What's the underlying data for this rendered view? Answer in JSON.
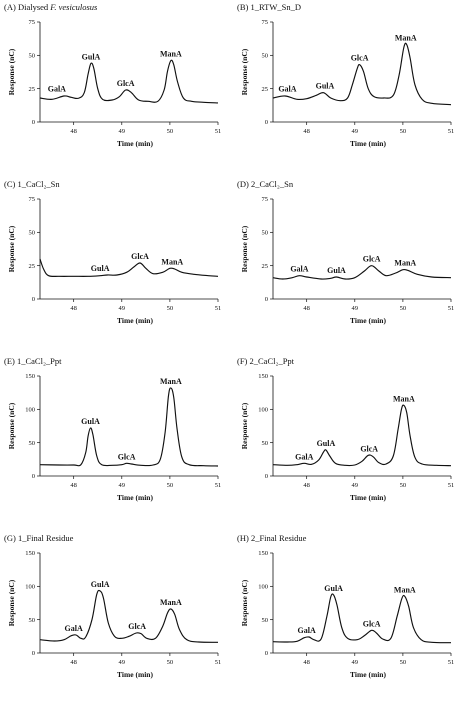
{
  "figure": {
    "x_label": "Time (min)",
    "y_label": "Response (nC)"
  },
  "chart_data": [
    {
      "type": "line",
      "panel": "A",
      "label_tag": "(A)",
      "title_plain": "Dialysed",
      "title_italic": "F. vesiculosus",
      "xlabel": "Time (min)",
      "ylabel": "Response (nC)",
      "xlim": [
        47.3,
        51
      ],
      "ylim": [
        0,
        75
      ],
      "x_ticks": [
        48,
        49,
        50,
        51
      ],
      "y_ticks": [
        0,
        25,
        50,
        75
      ],
      "baseline": [
        [
          47.3,
          18
        ],
        [
          47.55,
          17
        ],
        [
          47.8,
          19.5
        ],
        [
          47.95,
          18.5
        ],
        [
          48.1,
          17.8
        ],
        [
          48.22,
          22
        ],
        [
          48.3,
          36
        ],
        [
          48.36,
          44
        ],
        [
          48.42,
          40
        ],
        [
          48.5,
          25
        ],
        [
          48.6,
          17
        ],
        [
          48.8,
          16.5
        ],
        [
          48.95,
          19
        ],
        [
          49.08,
          24
        ],
        [
          49.2,
          22
        ],
        [
          49.35,
          16.5
        ],
        [
          49.55,
          15.5
        ],
        [
          49.75,
          15.5
        ],
        [
          49.88,
          24
        ],
        [
          49.95,
          38
        ],
        [
          50.02,
          46
        ],
        [
          50.08,
          43
        ],
        [
          50.16,
          30
        ],
        [
          50.28,
          18
        ],
        [
          50.45,
          15.5
        ],
        [
          50.7,
          14.8
        ],
        [
          51,
          14.3
        ]
      ],
      "peaks": [
        {
          "name": "GalA",
          "x": 47.65,
          "y": 20
        },
        {
          "name": "GulA",
          "x": 48.36,
          "y": 44
        },
        {
          "name": "GlcA",
          "x": 49.08,
          "y": 24
        },
        {
          "name": "ManA",
          "x": 50.02,
          "y": 46
        }
      ]
    },
    {
      "type": "line",
      "panel": "B",
      "label_tag": "(B)",
      "title_plain": "1_RTW_Sn_D",
      "title_italic": "",
      "xlabel": "Time (min)",
      "ylabel": "Response (nC)",
      "xlim": [
        47.3,
        51
      ],
      "ylim": [
        0,
        75
      ],
      "x_ticks": [
        48,
        49,
        50,
        51
      ],
      "y_ticks": [
        0,
        25,
        50,
        75
      ],
      "baseline": [
        [
          47.3,
          18
        ],
        [
          47.55,
          19.5
        ],
        [
          47.8,
          17
        ],
        [
          48.0,
          17.5
        ],
        [
          48.2,
          20
        ],
        [
          48.35,
          22
        ],
        [
          48.5,
          18
        ],
        [
          48.7,
          16
        ],
        [
          48.85,
          18
        ],
        [
          48.95,
          28
        ],
        [
          49.05,
          40
        ],
        [
          49.1,
          43
        ],
        [
          49.18,
          38
        ],
        [
          49.28,
          25
        ],
        [
          49.4,
          19
        ],
        [
          49.6,
          18
        ],
        [
          49.8,
          20
        ],
        [
          49.92,
          35
        ],
        [
          50.02,
          56
        ],
        [
          50.08,
          58
        ],
        [
          50.15,
          48
        ],
        [
          50.25,
          28
        ],
        [
          50.4,
          17
        ],
        [
          50.6,
          14
        ],
        [
          51,
          13
        ]
      ],
      "peaks": [
        {
          "name": "GalA",
          "x": 47.6,
          "y": 20
        },
        {
          "name": "GulA",
          "x": 48.38,
          "y": 22
        },
        {
          "name": "GlcA",
          "x": 49.1,
          "y": 43
        },
        {
          "name": "ManA",
          "x": 50.06,
          "y": 58
        }
      ]
    },
    {
      "type": "line",
      "panel": "C",
      "label_tag": "(C)",
      "title_plain": "1_CaCl₂_Sn",
      "title_italic": "",
      "xlabel": "Time (min)",
      "ylabel": "Response (nC)",
      "xlim": [
        47.3,
        51
      ],
      "ylim": [
        0,
        75
      ],
      "x_ticks": [
        48,
        49,
        50,
        51
      ],
      "y_ticks": [
        0,
        25,
        50,
        75
      ],
      "baseline": [
        [
          47.3,
          30
        ],
        [
          47.38,
          22
        ],
        [
          47.48,
          17.5
        ],
        [
          47.7,
          17
        ],
        [
          48.0,
          17
        ],
        [
          48.3,
          17
        ],
        [
          48.55,
          17.5
        ],
        [
          48.7,
          18
        ],
        [
          48.9,
          18
        ],
        [
          49.1,
          20
        ],
        [
          49.25,
          24
        ],
        [
          49.38,
          27
        ],
        [
          49.5,
          23
        ],
        [
          49.65,
          19
        ],
        [
          49.85,
          20
        ],
        [
          50.0,
          23
        ],
        [
          50.1,
          22.5
        ],
        [
          50.25,
          20
        ],
        [
          50.5,
          18.5
        ],
        [
          50.8,
          17.5
        ],
        [
          51,
          17
        ]
      ],
      "peaks": [
        {
          "name": "GulA",
          "x": 48.55,
          "y": 18
        },
        {
          "name": "GlcA",
          "x": 49.38,
          "y": 27
        },
        {
          "name": "ManA",
          "x": 50.05,
          "y": 23
        }
      ]
    },
    {
      "type": "line",
      "panel": "D",
      "label_tag": "(D)",
      "title_plain": "2_CaCl₂_Sn",
      "title_italic": "",
      "xlabel": "Time (min)",
      "ylabel": "Response (nC)",
      "xlim": [
        47.3,
        51
      ],
      "ylim": [
        0,
        75
      ],
      "x_ticks": [
        48,
        49,
        50,
        51
      ],
      "y_ticks": [
        0,
        25,
        50,
        75
      ],
      "baseline": [
        [
          47.3,
          16
        ],
        [
          47.5,
          15
        ],
        [
          47.7,
          16
        ],
        [
          47.85,
          17.5
        ],
        [
          48.0,
          16.5
        ],
        [
          48.3,
          15
        ],
        [
          48.5,
          15.5
        ],
        [
          48.62,
          16.5
        ],
        [
          48.8,
          15
        ],
        [
          49.0,
          16
        ],
        [
          49.2,
          21
        ],
        [
          49.35,
          25
        ],
        [
          49.5,
          21
        ],
        [
          49.65,
          17.5
        ],
        [
          49.85,
          19.5
        ],
        [
          50.0,
          22
        ],
        [
          50.1,
          21.5
        ],
        [
          50.3,
          18.5
        ],
        [
          50.6,
          16.5
        ],
        [
          51,
          16
        ]
      ],
      "peaks": [
        {
          "name": "GalA",
          "x": 47.85,
          "y": 17.5
        },
        {
          "name": "GulA",
          "x": 48.62,
          "y": 16.5
        },
        {
          "name": "GlcA",
          "x": 49.35,
          "y": 25
        },
        {
          "name": "ManA",
          "x": 50.05,
          "y": 22
        }
      ]
    },
    {
      "type": "line",
      "panel": "E",
      "label_tag": "(E)",
      "title_plain": "1_CaCl₂_Ppt",
      "title_italic": "",
      "xlabel": "Time (min)",
      "ylabel": "Response (nC)",
      "xlim": [
        47.3,
        51
      ],
      "ylim": [
        0,
        150
      ],
      "x_ticks": [
        48,
        49,
        50,
        51
      ],
      "y_ticks": [
        0,
        50,
        100,
        150
      ],
      "baseline": [
        [
          47.3,
          17
        ],
        [
          47.7,
          16.5
        ],
        [
          48.0,
          16.5
        ],
        [
          48.15,
          17
        ],
        [
          48.25,
          35
        ],
        [
          48.3,
          60
        ],
        [
          48.35,
          72
        ],
        [
          48.4,
          62
        ],
        [
          48.48,
          30
        ],
        [
          48.58,
          17
        ],
        [
          48.8,
          16
        ],
        [
          49.0,
          17
        ],
        [
          49.1,
          19
        ],
        [
          49.2,
          18
        ],
        [
          49.4,
          16
        ],
        [
          49.65,
          16.5
        ],
        [
          49.8,
          25
        ],
        [
          49.9,
          65
        ],
        [
          49.97,
          120
        ],
        [
          50.02,
          132
        ],
        [
          50.08,
          118
        ],
        [
          50.15,
          70
        ],
        [
          50.25,
          28
        ],
        [
          50.4,
          17
        ],
        [
          50.7,
          15.5
        ],
        [
          51,
          15
        ]
      ],
      "peaks": [
        {
          "name": "GulA",
          "x": 48.35,
          "y": 72
        },
        {
          "name": "GlcA",
          "x": 49.1,
          "y": 19
        },
        {
          "name": "ManA",
          "x": 50.02,
          "y": 132
        }
      ]
    },
    {
      "type": "line",
      "panel": "F",
      "label_tag": "(F)",
      "title_plain": "2_CaCl₂_Ppt",
      "title_italic": "",
      "xlabel": "Time (min)",
      "ylabel": "Response (nC)",
      "xlim": [
        47.3,
        51
      ],
      "ylim": [
        0,
        150
      ],
      "x_ticks": [
        48,
        49,
        50,
        51
      ],
      "y_ticks": [
        0,
        50,
        100,
        150
      ],
      "baseline": [
        [
          47.3,
          17
        ],
        [
          47.6,
          16
        ],
        [
          47.8,
          17
        ],
        [
          47.95,
          19
        ],
        [
          48.1,
          17.5
        ],
        [
          48.25,
          24
        ],
        [
          48.35,
          36
        ],
        [
          48.4,
          39
        ],
        [
          48.48,
          30
        ],
        [
          48.6,
          19
        ],
        [
          48.8,
          16
        ],
        [
          49.0,
          16.5
        ],
        [
          49.15,
          22
        ],
        [
          49.28,
          31
        ],
        [
          49.38,
          29
        ],
        [
          49.5,
          20
        ],
        [
          49.65,
          18
        ],
        [
          49.8,
          30
        ],
        [
          49.9,
          70
        ],
        [
          49.97,
          100
        ],
        [
          50.02,
          106
        ],
        [
          50.08,
          95
        ],
        [
          50.15,
          60
        ],
        [
          50.25,
          28
        ],
        [
          50.4,
          18
        ],
        [
          50.7,
          16
        ],
        [
          51,
          15.5
        ]
      ],
      "peaks": [
        {
          "name": "GalA",
          "x": 47.95,
          "y": 19
        },
        {
          "name": "GulA",
          "x": 48.4,
          "y": 39
        },
        {
          "name": "GlcA",
          "x": 49.3,
          "y": 31
        },
        {
          "name": "ManA",
          "x": 50.02,
          "y": 106
        }
      ]
    },
    {
      "type": "line",
      "panel": "G",
      "label_tag": "(G)",
      "title_plain": "1_Final Residue",
      "title_italic": "",
      "xlabel": "Time (min)",
      "ylabel": "Response (nC)",
      "xlim": [
        47.3,
        51
      ],
      "ylim": [
        0,
        150
      ],
      "x_ticks": [
        48,
        49,
        50,
        51
      ],
      "y_ticks": [
        0,
        50,
        100,
        150
      ],
      "baseline": [
        [
          47.3,
          20
        ],
        [
          47.6,
          18
        ],
        [
          47.8,
          20
        ],
        [
          47.95,
          26
        ],
        [
          48.05,
          27
        ],
        [
          48.15,
          22
        ],
        [
          48.25,
          24
        ],
        [
          48.38,
          50
        ],
        [
          48.48,
          88
        ],
        [
          48.55,
          93
        ],
        [
          48.62,
          82
        ],
        [
          48.72,
          45
        ],
        [
          48.85,
          25
        ],
        [
          49.0,
          22
        ],
        [
          49.15,
          25
        ],
        [
          49.3,
          30
        ],
        [
          49.4,
          29
        ],
        [
          49.52,
          22
        ],
        [
          49.7,
          22
        ],
        [
          49.85,
          40
        ],
        [
          49.95,
          60
        ],
        [
          50.02,
          66
        ],
        [
          50.1,
          58
        ],
        [
          50.2,
          35
        ],
        [
          50.35,
          20
        ],
        [
          50.6,
          16.5
        ],
        [
          51,
          16
        ]
      ],
      "peaks": [
        {
          "name": "GalA",
          "x": 48.0,
          "y": 27
        },
        {
          "name": "GulA",
          "x": 48.55,
          "y": 93
        },
        {
          "name": "GlcA",
          "x": 49.32,
          "y": 30
        },
        {
          "name": "ManA",
          "x": 50.02,
          "y": 66
        }
      ]
    },
    {
      "type": "line",
      "panel": "H",
      "label_tag": "(H)",
      "title_plain": "2_Final Residue",
      "title_italic": "",
      "xlabel": "Time (min)",
      "ylabel": "Response (nC)",
      "xlim": [
        47.3,
        51
      ],
      "ylim": [
        0,
        150
      ],
      "x_ticks": [
        48,
        49,
        50,
        51
      ],
      "y_ticks": [
        0,
        50,
        100,
        150
      ],
      "baseline": [
        [
          47.3,
          17
        ],
        [
          47.6,
          16.5
        ],
        [
          47.8,
          17.5
        ],
        [
          47.95,
          23
        ],
        [
          48.05,
          24
        ],
        [
          48.15,
          20
        ],
        [
          48.3,
          21
        ],
        [
          48.42,
          55
        ],
        [
          48.5,
          84
        ],
        [
          48.56,
          87
        ],
        [
          48.63,
          72
        ],
        [
          48.73,
          38
        ],
        [
          48.85,
          22
        ],
        [
          49.05,
          20
        ],
        [
          49.2,
          26
        ],
        [
          49.35,
          34
        ],
        [
          49.45,
          30
        ],
        [
          49.58,
          21
        ],
        [
          49.75,
          22
        ],
        [
          49.88,
          55
        ],
        [
          49.98,
          82
        ],
        [
          50.04,
          85
        ],
        [
          50.12,
          70
        ],
        [
          50.22,
          38
        ],
        [
          50.38,
          20
        ],
        [
          50.6,
          16
        ],
        [
          51,
          15.5
        ]
      ],
      "peaks": [
        {
          "name": "GalA",
          "x": 48.0,
          "y": 24
        },
        {
          "name": "GulA",
          "x": 48.56,
          "y": 87
        },
        {
          "name": "GlcA",
          "x": 49.35,
          "y": 34
        },
        {
          "name": "ManA",
          "x": 50.04,
          "y": 85
        }
      ]
    }
  ]
}
